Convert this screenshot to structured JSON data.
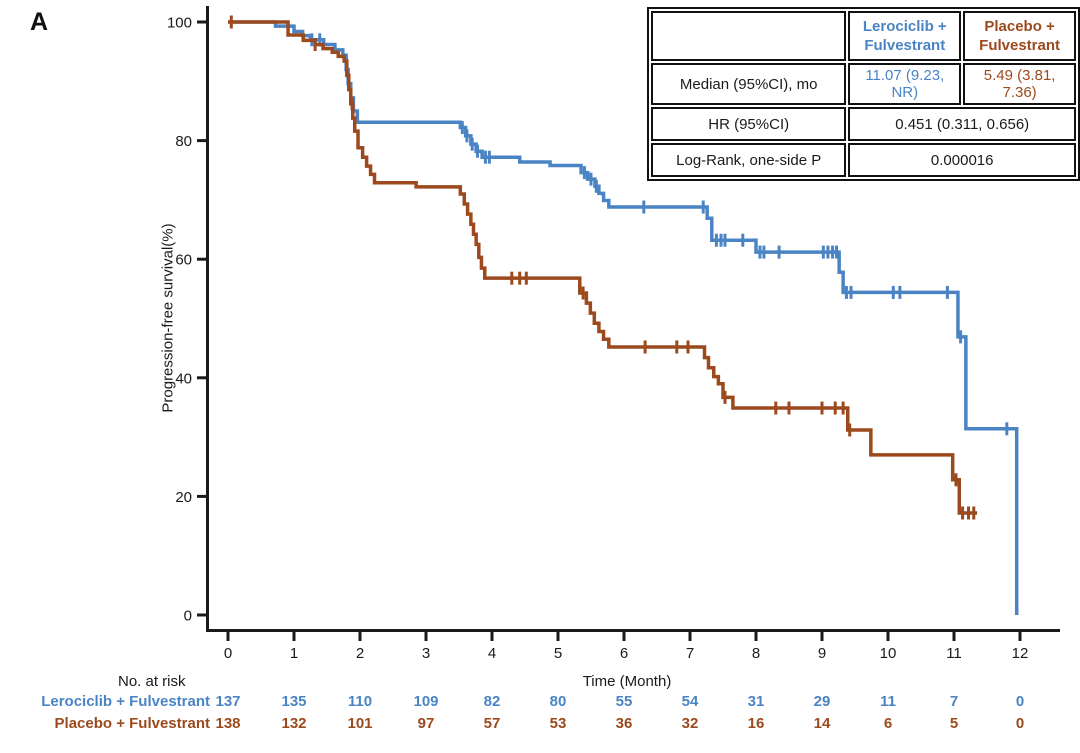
{
  "panel_label": "A",
  "colors": {
    "lerociclib": "#4B84C4",
    "placebo": "#9C4A1D",
    "axis": "#1a1a1a"
  },
  "stats_table": {
    "col1": {
      "line1": "Lerociclib +",
      "line2": "Fulvestrant"
    },
    "col2": {
      "line1": "Placebo +",
      "line2": "Fulvestrant"
    },
    "rows": {
      "median": {
        "label": "Median (95%CI), mo",
        "lerociclib": "11.07 (9.23, NR)",
        "placebo": "5.49 (3.81, 7.36)"
      },
      "hr": {
        "label": "HR (95%CI)",
        "value": "0.451 (0.311, 0.656)"
      },
      "logrank": {
        "label": "Log-Rank, one-side P",
        "value": "0.000016"
      }
    }
  },
  "chart_data": {
    "type": "line",
    "subtype": "kaplan-meier-step",
    "title": "",
    "xlabel": "Time (Month)",
    "ylabel": "Progression-free survival(%)",
    "xlim": [
      0,
      12
    ],
    "ylim": [
      0,
      100
    ],
    "xticks": [
      0,
      1,
      2,
      3,
      4,
      5,
      6,
      7,
      8,
      9,
      10,
      11,
      12
    ],
    "yticks": [
      0,
      20,
      40,
      60,
      80,
      100
    ],
    "grid": false,
    "legend_position": "none",
    "series": [
      {
        "name": "Lerociclib + Fulvestrant",
        "color_key": "lerociclib",
        "end_month": 11.95,
        "steps": [
          [
            0,
            100
          ],
          [
            0.72,
            99.3
          ],
          [
            1.0,
            98.4
          ],
          [
            1.13,
            97.7
          ],
          [
            1.25,
            97.0
          ],
          [
            1.45,
            96.2
          ],
          [
            1.62,
            95.3
          ],
          [
            1.74,
            94.4
          ],
          [
            1.79,
            92.0
          ],
          [
            1.82,
            89.6
          ],
          [
            1.86,
            87.2
          ],
          [
            1.9,
            85.0
          ],
          [
            1.96,
            83.1
          ],
          [
            3.52,
            82.2
          ],
          [
            3.6,
            80.8
          ],
          [
            3.68,
            79.4
          ],
          [
            3.76,
            78.2
          ],
          [
            3.85,
            77.2
          ],
          [
            4.42,
            76.4
          ],
          [
            4.88,
            75.8
          ],
          [
            5.35,
            74.6
          ],
          [
            5.45,
            73.5
          ],
          [
            5.56,
            72.3
          ],
          [
            5.62,
            71.1
          ],
          [
            5.69,
            69.9
          ],
          [
            5.77,
            68.8
          ],
          [
            7.26,
            66.9
          ],
          [
            7.33,
            63.2
          ],
          [
            8.0,
            61.2
          ],
          [
            9.26,
            57.8
          ],
          [
            9.32,
            54.4
          ],
          [
            11.06,
            46.9
          ],
          [
            11.18,
            31.4
          ],
          [
            11.95,
            0
          ]
        ],
        "censor_times": [
          1.27,
          1.39,
          3.55,
          3.62,
          3.7,
          3.78,
          3.9,
          3.96,
          5.4,
          5.5,
          5.58,
          6.3,
          7.2,
          7.4,
          7.47,
          7.53,
          7.8,
          8.06,
          8.12,
          8.35,
          9.02,
          9.09,
          9.16,
          9.22,
          9.37,
          9.44,
          10.08,
          10.18,
          10.9,
          11.1,
          11.8
        ]
      },
      {
        "name": "Placebo + Fulvestrant",
        "color_key": "placebo",
        "end_month": 11.35,
        "steps": [
          [
            0,
            100
          ],
          [
            0.91,
            97.8
          ],
          [
            1.14,
            96.9
          ],
          [
            1.32,
            96.2
          ],
          [
            1.44,
            95.5
          ],
          [
            1.58,
            94.9
          ],
          [
            1.67,
            94.2
          ],
          [
            1.76,
            93.4
          ],
          [
            1.8,
            91.0
          ],
          [
            1.83,
            88.6
          ],
          [
            1.86,
            86.2
          ],
          [
            1.89,
            83.8
          ],
          [
            1.92,
            81.6
          ],
          [
            1.97,
            78.8
          ],
          [
            2.04,
            77.2
          ],
          [
            2.1,
            75.7
          ],
          [
            2.16,
            74.3
          ],
          [
            2.22,
            72.9
          ],
          [
            2.85,
            72.2
          ],
          [
            3.52,
            71.0
          ],
          [
            3.58,
            69.3
          ],
          [
            3.63,
            67.6
          ],
          [
            3.68,
            65.9
          ],
          [
            3.72,
            64.2
          ],
          [
            3.76,
            62.5
          ],
          [
            3.8,
            60.3
          ],
          [
            3.84,
            58.5
          ],
          [
            3.89,
            56.8
          ],
          [
            5.33,
            54.3
          ],
          [
            5.43,
            52.6
          ],
          [
            5.49,
            50.9
          ],
          [
            5.55,
            49.2
          ],
          [
            5.62,
            47.8
          ],
          [
            5.69,
            46.5
          ],
          [
            5.77,
            45.2
          ],
          [
            7.22,
            43.4
          ],
          [
            7.28,
            41.7
          ],
          [
            7.36,
            40.2
          ],
          [
            7.43,
            39.0
          ],
          [
            7.5,
            36.7
          ],
          [
            7.65,
            34.9
          ],
          [
            9.39,
            31.2
          ],
          [
            9.74,
            27.0
          ],
          [
            10.98,
            22.8
          ],
          [
            11.08,
            17.2
          ]
        ],
        "censor_times": [
          0.05,
          1.32,
          1.88,
          4.3,
          4.42,
          4.52,
          5.38,
          6.32,
          6.8,
          6.97,
          7.53,
          8.3,
          8.5,
          9.0,
          9.2,
          9.32,
          9.42,
          11.03,
          11.13,
          11.22,
          11.3
        ]
      }
    ],
    "risk_table": {
      "header": "No. at risk",
      "months": [
        0,
        1,
        2,
        3,
        4,
        5,
        6,
        7,
        8,
        9,
        10,
        11,
        12
      ],
      "rows": [
        {
          "label": "Lerociclib + Fulvestrant",
          "color_key": "lerociclib",
          "values": [
            137,
            135,
            110,
            109,
            82,
            80,
            55,
            54,
            31,
            29,
            11,
            7,
            0
          ]
        },
        {
          "label": "Placebo + Fulvestrant",
          "color_key": "placebo",
          "values": [
            138,
            132,
            101,
            97,
            57,
            53,
            36,
            32,
            16,
            14,
            6,
            5,
            0
          ]
        }
      ]
    }
  }
}
